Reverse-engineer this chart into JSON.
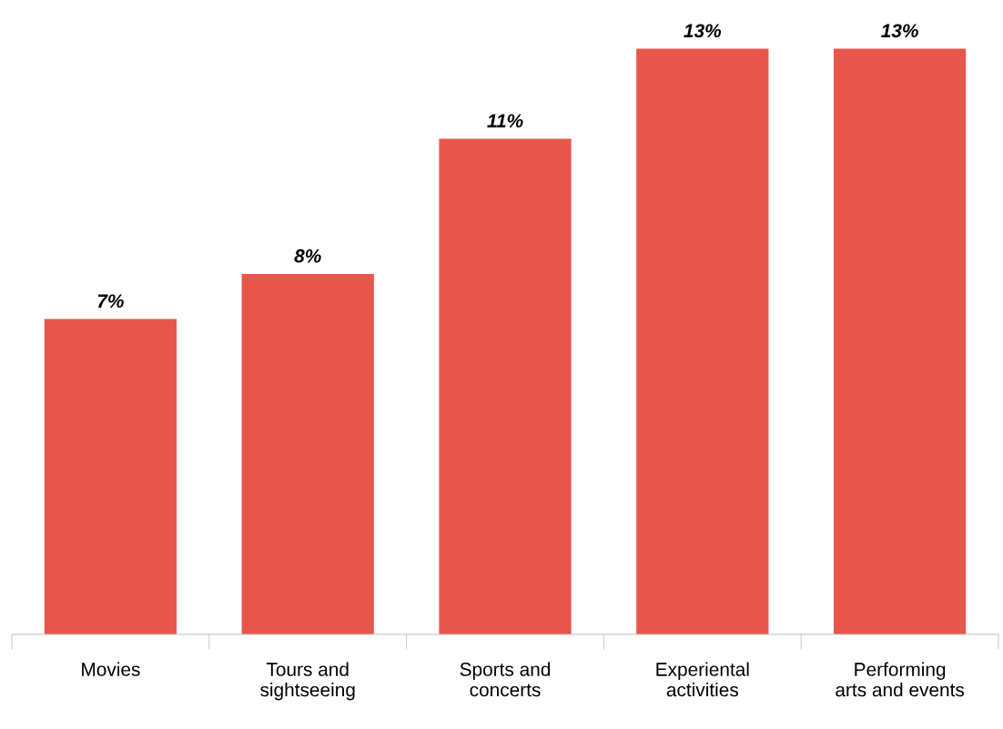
{
  "chart_data": {
    "type": "bar",
    "categories": [
      "Movies",
      "Tours and\nsightseeing",
      "Sports and\nconcerts",
      "Experiental\nactivities",
      "Performing\narts and events"
    ],
    "values": [
      7,
      8,
      11,
      13,
      13
    ],
    "value_labels": [
      "7%",
      "8%",
      "11%",
      "13%",
      "13%"
    ],
    "color": "#e8564b",
    "tick_labels": "x",
    "grid": false,
    "legend": false
  }
}
